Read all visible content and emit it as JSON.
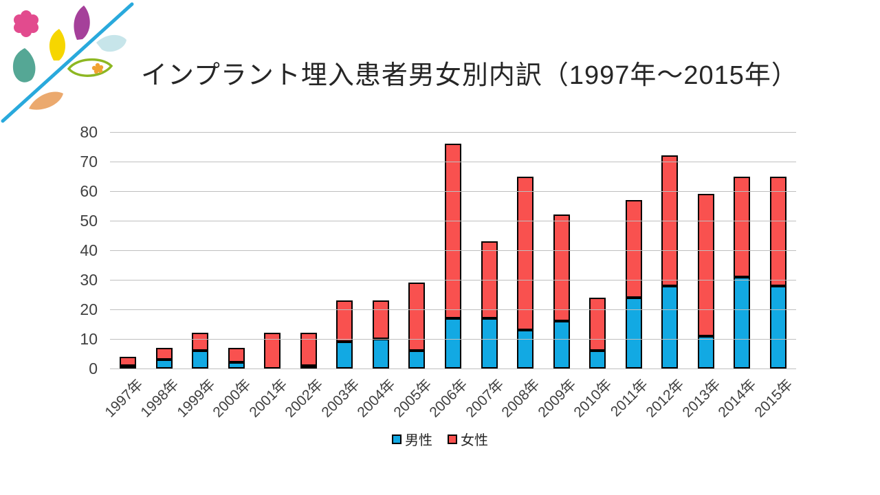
{
  "chart_data": {
    "type": "bar",
    "stacked": true,
    "title": "インプラント埋入患者男女別内訳（1997年～2015年）",
    "categories": [
      "1997年",
      "1998年",
      "1999年",
      "2000年",
      "2001年",
      "2002年",
      "2003年",
      "2004年",
      "2005年",
      "2006年",
      "2007年",
      "2008年",
      "2009年",
      "2010年",
      "2011年",
      "2012年",
      "2013年",
      "2014年",
      "2015年"
    ],
    "series": [
      {
        "name": "男性",
        "color": "#12A9E3",
        "values": [
          1,
          3,
          6,
          2,
          0,
          1,
          9,
          10,
          6,
          17,
          17,
          13,
          16,
          6,
          24,
          28,
          11,
          31,
          28
        ]
      },
      {
        "name": "女性",
        "color": "#F9514F",
        "values": [
          3,
          4,
          6,
          5,
          12,
          11,
          14,
          13,
          23,
          59,
          26,
          52,
          36,
          18,
          33,
          44,
          48,
          34,
          37
        ]
      }
    ],
    "totals": [
      4,
      7,
      12,
      7,
      12,
      12,
      23,
      23,
      29,
      76,
      43,
      65,
      52,
      24,
      57,
      72,
      59,
      65,
      65
    ],
    "xlabel": "",
    "ylabel": "",
    "ylim": [
      0,
      80
    ],
    "yticks": [
      0,
      10,
      20,
      30,
      40,
      50,
      60,
      70,
      80
    ],
    "grid": "horizontal",
    "legend_position": "bottom",
    "gridline_color": "#BFBFBF",
    "bar_border_color": "#000000",
    "axis_text_color": "#404040"
  },
  "logo": {
    "flower_pink": "#E24B8E",
    "leaf_purple": "#A5409A",
    "leaf_yellow": "#F6D600",
    "leaf_teal": "#55A795",
    "drop_lightblue": "#C7E5EA",
    "leaf_green_outline": "#8DB722",
    "flower_orange": "#F0A232",
    "leaf_orange": "#EBA96E",
    "line_blue": "#29A9DC"
  }
}
